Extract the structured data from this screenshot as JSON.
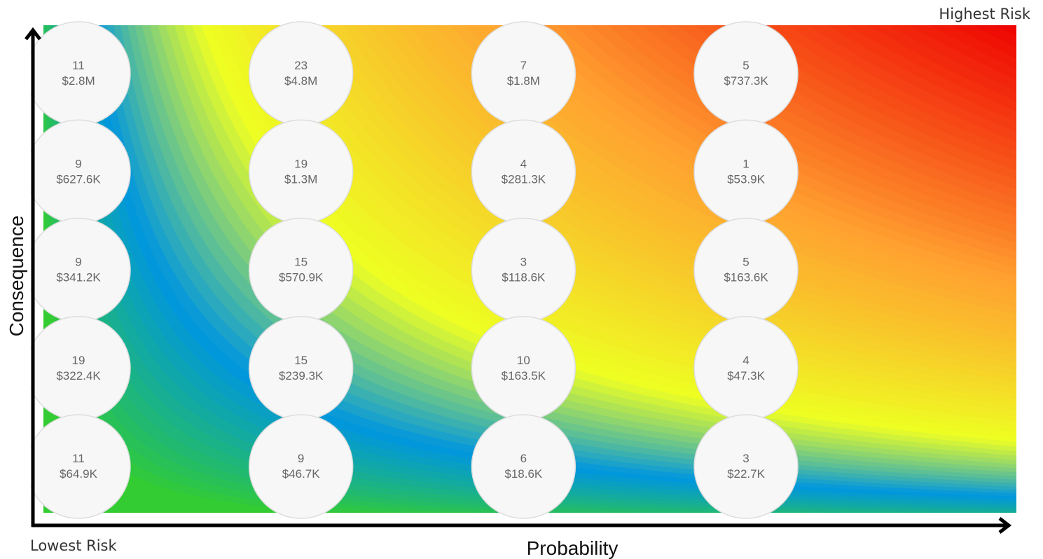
{
  "labels": {
    "highest": "Highest Risk",
    "lowest": "Lowest Risk"
  },
  "chart_data": {
    "type": "scatter",
    "subtype": "risk-bubble-matrix",
    "xlabel": "Probability",
    "ylabel": "Consequence",
    "x_levels": 4,
    "y_levels": 5,
    "grid": false,
    "gradient": {
      "direction": "low (bottom-left) to high (top-right)",
      "colors": [
        "#33cc33",
        "#0096e0",
        "#eeff22",
        "#ffa030",
        "#ee0000"
      ]
    },
    "bubble_color": "#f7f7f7",
    "points": [
      {
        "x": 1,
        "y": 5,
        "count": "11",
        "amount": "$2.8M"
      },
      {
        "x": 2,
        "y": 5,
        "count": "23",
        "amount": "$4.8M"
      },
      {
        "x": 3,
        "y": 5,
        "count": "7",
        "amount": "$1.8M"
      },
      {
        "x": 4,
        "y": 5,
        "count": "5",
        "amount": "$737.3K"
      },
      {
        "x": 1,
        "y": 4,
        "count": "9",
        "amount": "$627.6K"
      },
      {
        "x": 2,
        "y": 4,
        "count": "19",
        "amount": "$1.3M"
      },
      {
        "x": 3,
        "y": 4,
        "count": "4",
        "amount": "$281.3K"
      },
      {
        "x": 4,
        "y": 4,
        "count": "1",
        "amount": "$53.9K"
      },
      {
        "x": 1,
        "y": 3,
        "count": "9",
        "amount": "$341.2K"
      },
      {
        "x": 2,
        "y": 3,
        "count": "15",
        "amount": "$570.9K"
      },
      {
        "x": 3,
        "y": 3,
        "count": "3",
        "amount": "$118.6K"
      },
      {
        "x": 4,
        "y": 3,
        "count": "5",
        "amount": "$163.6K"
      },
      {
        "x": 1,
        "y": 2,
        "count": "19",
        "amount": "$322.4K"
      },
      {
        "x": 2,
        "y": 2,
        "count": "15",
        "amount": "$239.3K"
      },
      {
        "x": 3,
        "y": 2,
        "count": "10",
        "amount": "$163.5K"
      },
      {
        "x": 4,
        "y": 2,
        "count": "4",
        "amount": "$47.3K"
      },
      {
        "x": 1,
        "y": 1,
        "count": "11",
        "amount": "$64.9K"
      },
      {
        "x": 2,
        "y": 1,
        "count": "9",
        "amount": "$46.7K"
      },
      {
        "x": 3,
        "y": 1,
        "count": "6",
        "amount": "$18.6K"
      },
      {
        "x": 4,
        "y": 1,
        "count": "3",
        "amount": "$22.7K"
      }
    ]
  }
}
